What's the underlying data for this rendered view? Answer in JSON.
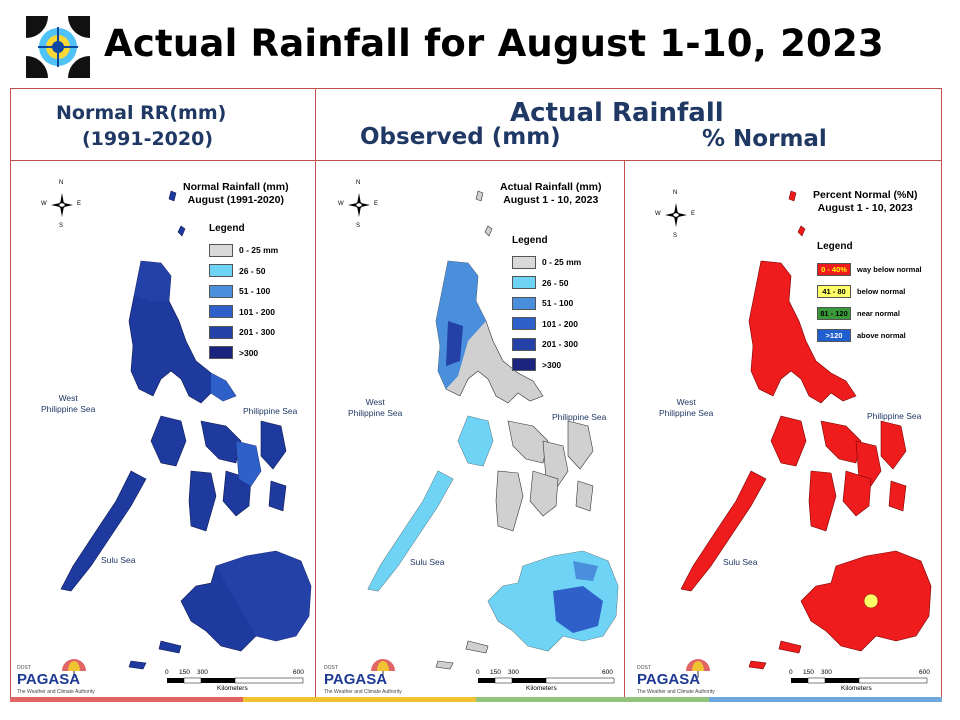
{
  "title": "Actual Rainfall for August 1-10, 2023",
  "header": {
    "left_line1": "Normal RR(mm)",
    "left_line2": "(1991-2020)",
    "right_top": "Actual Rainfall",
    "right_observed": "Observed (mm)",
    "right_normal": "% Normal"
  },
  "panels": [
    {
      "map_title_1": "Normal Rainfall (mm)",
      "map_title_2": "August (1991-2020)",
      "legend_title": "Legend",
      "legend": [
        {
          "label": "0 - 25 mm",
          "color": "#d9d9d9"
        },
        {
          "label": "26 - 50",
          "color": "#6fd3f5"
        },
        {
          "label": "51 - 100",
          "color": "#4a8fdc"
        },
        {
          "label": "101 - 200",
          "color": "#2f5fc8"
        },
        {
          "label": "201 - 300",
          "color": "#2441a8"
        },
        {
          "label": ">300",
          "color": "#1a237e"
        }
      ]
    },
    {
      "map_title_1": "Actual Rainfall (mm)",
      "map_title_2": "August 1 - 10, 2023",
      "legend_title": "Legend",
      "legend": [
        {
          "label": "0 - 25 mm",
          "color": "#d9d9d9"
        },
        {
          "label": "26 - 50",
          "color": "#6fd3f5"
        },
        {
          "label": "51 - 100",
          "color": "#4a8fdc"
        },
        {
          "label": "101 - 200",
          "color": "#2f5fc8"
        },
        {
          "label": "201 - 300",
          "color": "#2441a8"
        },
        {
          "label": ">300",
          "color": "#1a237e"
        }
      ]
    },
    {
      "map_title_1": "Percent Normal (%N)",
      "map_title_2": "August 1 - 10, 2023",
      "legend_title": "Legend",
      "legend": [
        {
          "swatch": "0 - 40%",
          "label": "way below normal",
          "color": "#ee1c1c",
          "text_color": "#ffff00"
        },
        {
          "swatch": "41 - 80",
          "label": "below normal",
          "color": "#ffff66",
          "text_color": "#000000"
        },
        {
          "swatch": "81 - 120",
          "label": "near normal",
          "color": "#3a9a3a",
          "text_color": "#000000"
        },
        {
          "swatch": ">120",
          "label": "above normal",
          "color": "#1f5fd0",
          "text_color": "#ffffff"
        }
      ]
    }
  ],
  "map_labels": {
    "west_ph_sea_1": "West",
    "west_ph_sea_2": "Philippine Sea",
    "ph_sea": "Philippine Sea",
    "sulu_sea": "Sulu Sea",
    "compass_n": "N",
    "compass_s": "S",
    "compass_e": "E",
    "compass_w": "W"
  },
  "scale": {
    "ticks": [
      "0",
      "150",
      "300",
      "600"
    ],
    "unit": "Kilometers"
  },
  "branding": {
    "dost": "DOST",
    "pagasa": "PAGASA",
    "tagline": "The Weather and Climate Authority"
  },
  "colors": {
    "frame": "#c0504d",
    "header_text": "#1f3864",
    "stripe": [
      "#e06666",
      "#f1c232",
      "#93c47d",
      "#6fa8dc"
    ]
  }
}
